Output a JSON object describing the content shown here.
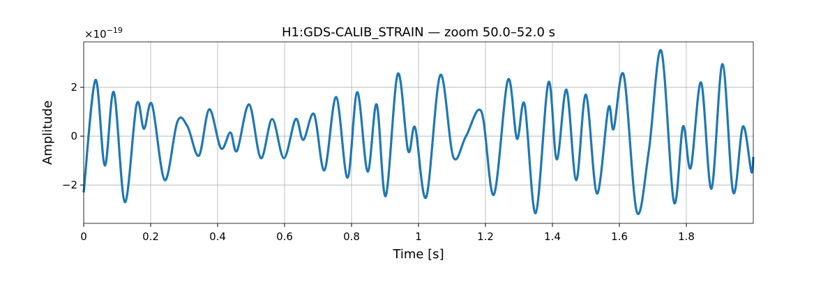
{
  "chart_data": {
    "type": "line",
    "title": "H1:GDS-CALIB_STRAIN — zoom 50.0–52.0 s",
    "x_label": "Time [s]",
    "y_label": "Amplitude",
    "y_offset_text": {
      "base": "×10",
      "exponent": "−19"
    },
    "xlim": [
      0,
      2.0
    ],
    "ylim": [
      -3.57,
      3.86
    ],
    "xticks": [
      0,
      0.2,
      0.4,
      0.6,
      0.8,
      1,
      1.2,
      1.4,
      1.6,
      1.8
    ],
    "yticks": [
      {
        "value": -2,
        "label": "−2"
      },
      0,
      2
    ],
    "grid": true,
    "series": [
      {
        "color": "#1f77b4",
        "x": [
          0,
          0.035,
          0.063,
          0.09,
          0.123,
          0.158,
          0.18,
          0.204,
          0.242,
          0.28,
          0.31,
          0.344,
          0.375,
          0.41,
          0.438,
          0.458,
          0.494,
          0.529,
          0.563,
          0.598,
          0.633,
          0.656,
          0.688,
          0.719,
          0.754,
          0.788,
          0.817,
          0.848,
          0.875,
          0.902,
          0.938,
          0.969,
          0.99,
          1.023,
          1.065,
          1.104,
          1.142,
          1.188,
          1.225,
          1.267,
          1.294,
          1.317,
          1.35,
          1.388,
          1.413,
          1.442,
          1.471,
          1.5,
          1.533,
          1.567,
          1.583,
          1.613,
          1.652,
          1.688,
          1.725,
          1.763,
          1.79,
          1.813,
          1.844,
          1.875,
          1.908,
          1.94,
          1.969,
          1.994,
          2.0
        ],
        "values": [
          -2.3,
          2.3,
          -1.2,
          1.8,
          -2.7,
          1.3,
          0.3,
          1.3,
          -1.8,
          0.6,
          0.4,
          -0.8,
          1.1,
          -0.5,
          0.15,
          -0.6,
          1.3,
          -0.9,
          0.7,
          -0.9,
          0.7,
          -0.15,
          0.9,
          -1.4,
          1.6,
          -1.7,
          1.8,
          -1.45,
          1.3,
          -2.45,
          2.55,
          -0.6,
          0.35,
          -2.5,
          2.5,
          -0.85,
          0,
          1.0,
          -2.4,
          2.3,
          -0.1,
          1.3,
          -3.15,
          2.2,
          -0.95,
          1.9,
          -1.8,
          1.7,
          -2.35,
          1.15,
          0.3,
          2.5,
          -3.1,
          -0.6,
          3.5,
          -2.7,
          0.4,
          -1.3,
          2.2,
          -2.15,
          2.95,
          -2.3,
          0.4,
          -1.45,
          -0.85
        ]
      }
    ]
  }
}
